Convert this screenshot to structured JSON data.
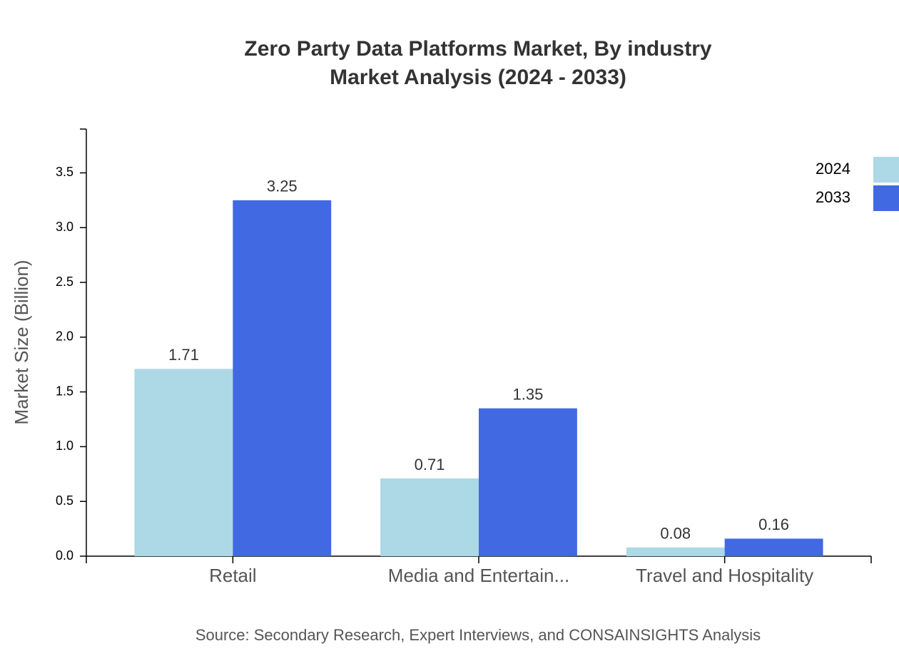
{
  "chart_data": {
    "type": "bar",
    "title": "Zero Party Data Platforms Market, By industry",
    "subtitle": "Market Analysis (2024 - 2033)",
    "y_label": "Market Size (Billion)",
    "source": "Source: Secondary Research, Expert Interviews, and CONSAINSIGHTS Analysis",
    "categories": [
      "Retail",
      "Media and Entertain...",
      "Travel and Hospitality"
    ],
    "series": [
      {
        "name": "2024",
        "color": "#add8e6",
        "values": [
          1.71,
          0.71,
          0.08
        ]
      },
      {
        "name": "2033",
        "color": "#4169e1",
        "values": [
          3.25,
          1.35,
          0.16
        ]
      }
    ],
    "ylim": [
      0,
      3.9
    ],
    "yticks": [
      {
        "value": 0,
        "label": "0.0"
      },
      0.5,
      {
        "value": 1,
        "label": "1.0"
      },
      1.5,
      {
        "value": 2,
        "label": "2.0"
      },
      2.5,
      {
        "value": 3,
        "label": "3.0"
      },
      3.5
    ],
    "legend": "top-right",
    "grid": false,
    "data_labels": true
  }
}
